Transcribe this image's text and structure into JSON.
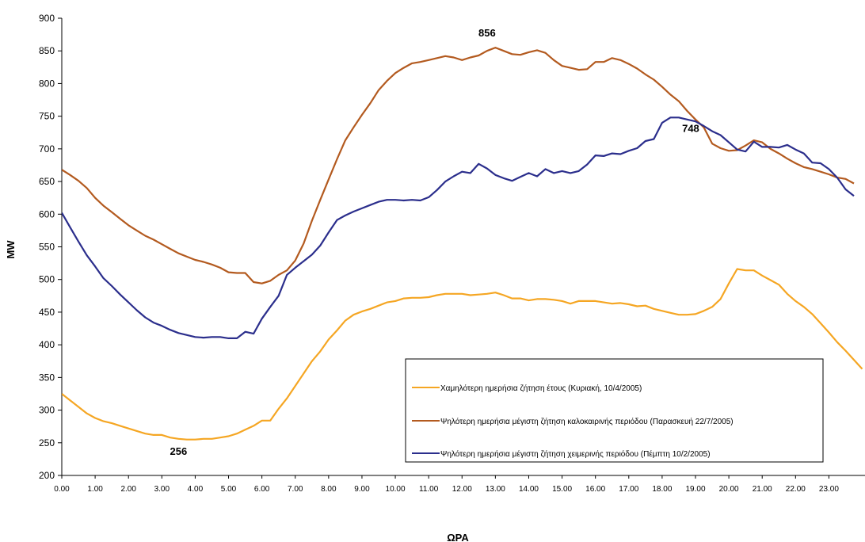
{
  "chart_data": {
    "type": "line",
    "xlabel": "ΩΡΑ",
    "ylabel": "MW",
    "ylim": [
      200,
      900
    ],
    "xlim": [
      0,
      23.75
    ],
    "y_ticks": [
      200,
      250,
      300,
      350,
      400,
      450,
      500,
      550,
      600,
      650,
      700,
      750,
      800,
      850,
      900
    ],
    "x_tick_labels": [
      "0.00",
      "1.00",
      "2.00",
      "3.00",
      "4.00",
      "5.00",
      "6.00",
      "7.00",
      "8.00",
      "9.00",
      "10.00",
      "11.00",
      "12.00",
      "13.00",
      "14.00",
      "15.00",
      "16.00",
      "17.00",
      "18.00",
      "19.00",
      "20.00",
      "21.00",
      "22.00",
      "23.00"
    ],
    "grid": false,
    "legend_position": "bottom-right",
    "series": [
      {
        "name": "Χαμηλότερη ημερήσια ζήτηση έτους (Κυριακή, 10/4/2005)",
        "color": "#f5a623",
        "points": [
          [
            0,
            325
          ],
          [
            0.25,
            315
          ],
          [
            0.5,
            305
          ],
          [
            0.75,
            295
          ],
          [
            1,
            288
          ],
          [
            1.25,
            283
          ],
          [
            1.5,
            280
          ],
          [
            1.75,
            276
          ],
          [
            2,
            272
          ],
          [
            2.25,
            268
          ],
          [
            2.5,
            264
          ],
          [
            2.75,
            262
          ],
          [
            3,
            262
          ],
          [
            3.25,
            258
          ],
          [
            3.5,
            256
          ],
          [
            3.75,
            255
          ],
          [
            4,
            255
          ],
          [
            4.25,
            256
          ],
          [
            4.5,
            256
          ],
          [
            4.75,
            258
          ],
          [
            5,
            260
          ],
          [
            5.25,
            264
          ],
          [
            5.5,
            270
          ],
          [
            5.75,
            276
          ],
          [
            6,
            284
          ],
          [
            6.25,
            284
          ],
          [
            6.5,
            302
          ],
          [
            6.75,
            318
          ],
          [
            7,
            337
          ],
          [
            7.25,
            356
          ],
          [
            7.5,
            375
          ],
          [
            7.75,
            390
          ],
          [
            8,
            408
          ],
          [
            8.25,
            422
          ],
          [
            8.5,
            437
          ],
          [
            8.75,
            446
          ],
          [
            9,
            451
          ],
          [
            9.25,
            455
          ],
          [
            9.5,
            460
          ],
          [
            9.75,
            465
          ],
          [
            10,
            467
          ],
          [
            10.25,
            471
          ],
          [
            10.5,
            472
          ],
          [
            10.75,
            472
          ],
          [
            11,
            473
          ],
          [
            11.25,
            476
          ],
          [
            11.5,
            478
          ],
          [
            11.75,
            478
          ],
          [
            12,
            478
          ],
          [
            12.25,
            476
          ],
          [
            12.5,
            477
          ],
          [
            12.75,
            478
          ],
          [
            13,
            480
          ],
          [
            13.25,
            476
          ],
          [
            13.5,
            471
          ],
          [
            13.75,
            471
          ],
          [
            14,
            468
          ],
          [
            14.25,
            470
          ],
          [
            14.5,
            470
          ],
          [
            14.75,
            469
          ],
          [
            15,
            467
          ],
          [
            15.25,
            463
          ],
          [
            15.5,
            467
          ],
          [
            15.75,
            467
          ],
          [
            16,
            467
          ],
          [
            16.25,
            465
          ],
          [
            16.5,
            463
          ],
          [
            16.75,
            464
          ],
          [
            17,
            462
          ],
          [
            17.25,
            459
          ],
          [
            17.5,
            460
          ],
          [
            17.75,
            455
          ],
          [
            18,
            452
          ],
          [
            18.25,
            449
          ],
          [
            18.5,
            446
          ],
          [
            18.75,
            446
          ],
          [
            19,
            447
          ],
          [
            19.25,
            452
          ],
          [
            19.5,
            458
          ],
          [
            19.75,
            470
          ],
          [
            20,
            494
          ],
          [
            20.25,
            516
          ],
          [
            20.5,
            514
          ],
          [
            20.75,
            514
          ],
          [
            21,
            506
          ],
          [
            21.25,
            499
          ],
          [
            21.5,
            492
          ],
          [
            21.75,
            478
          ],
          [
            22,
            467
          ],
          [
            22.25,
            458
          ],
          [
            22.5,
            447
          ],
          [
            22.75,
            433
          ],
          [
            23,
            419
          ],
          [
            23.25,
            404
          ],
          [
            23.5,
            391
          ],
          [
            23.75,
            377
          ],
          [
            24,
            363
          ]
        ]
      },
      {
        "name": "Ψηλότερη ημερήσια μέγιστη ζήτηση καλοκαιρινής περιόδου (Παρασκευή 22/7/2005)",
        "color": "#b35a1f",
        "points": [
          [
            0,
            668
          ],
          [
            0.25,
            660
          ],
          [
            0.5,
            651
          ],
          [
            0.75,
            640
          ],
          [
            1,
            625
          ],
          [
            1.25,
            613
          ],
          [
            1.5,
            603
          ],
          [
            1.75,
            593
          ],
          [
            2,
            583
          ],
          [
            2.25,
            575
          ],
          [
            2.5,
            567
          ],
          [
            2.75,
            561
          ],
          [
            3,
            554
          ],
          [
            3.25,
            547
          ],
          [
            3.5,
            540
          ],
          [
            3.75,
            535
          ],
          [
            4,
            530
          ],
          [
            4.25,
            527
          ],
          [
            4.5,
            523
          ],
          [
            4.75,
            518
          ],
          [
            5,
            511
          ],
          [
            5.25,
            510
          ],
          [
            5.5,
            510
          ],
          [
            5.75,
            496
          ],
          [
            6,
            494
          ],
          [
            6.25,
            498
          ],
          [
            6.5,
            507
          ],
          [
            6.75,
            514
          ],
          [
            7,
            529
          ],
          [
            7.25,
            555
          ],
          [
            7.5,
            590
          ],
          [
            7.75,
            622
          ],
          [
            8,
            653
          ],
          [
            8.25,
            684
          ],
          [
            8.5,
            713
          ],
          [
            8.75,
            733
          ],
          [
            9,
            752
          ],
          [
            9.25,
            770
          ],
          [
            9.5,
            790
          ],
          [
            9.75,
            804
          ],
          [
            10,
            816
          ],
          [
            10.25,
            824
          ],
          [
            10.5,
            831
          ],
          [
            10.75,
            833
          ],
          [
            11,
            836
          ],
          [
            11.25,
            839
          ],
          [
            11.5,
            842
          ],
          [
            11.75,
            840
          ],
          [
            12,
            836
          ],
          [
            12.25,
            840
          ],
          [
            12.5,
            843
          ],
          [
            12.75,
            850
          ],
          [
            13,
            855
          ],
          [
            13.25,
            850
          ],
          [
            13.5,
            845
          ],
          [
            13.75,
            844
          ],
          [
            14,
            848
          ],
          [
            14.25,
            851
          ],
          [
            14.5,
            847
          ],
          [
            14.75,
            836
          ],
          [
            15,
            827
          ],
          [
            15.25,
            824
          ],
          [
            15.5,
            821
          ],
          [
            15.75,
            822
          ],
          [
            16,
            833
          ],
          [
            16.25,
            833
          ],
          [
            16.5,
            839
          ],
          [
            16.75,
            836
          ],
          [
            17,
            830
          ],
          [
            17.25,
            823
          ],
          [
            17.5,
            814
          ],
          [
            17.75,
            806
          ],
          [
            18,
            795
          ],
          [
            18.25,
            783
          ],
          [
            18.5,
            773
          ],
          [
            18.75,
            758
          ],
          [
            19,
            745
          ],
          [
            19.25,
            733
          ],
          [
            19.5,
            708
          ],
          [
            19.75,
            701
          ],
          [
            20,
            697
          ],
          [
            20.25,
            698
          ],
          [
            20.5,
            705
          ],
          [
            20.75,
            713
          ],
          [
            21,
            710
          ],
          [
            21.25,
            700
          ],
          [
            21.5,
            693
          ],
          [
            21.75,
            685
          ],
          [
            22,
            678
          ],
          [
            22.25,
            672
          ],
          [
            22.5,
            669
          ],
          [
            22.75,
            665
          ],
          [
            23,
            661
          ],
          [
            23.25,
            656
          ],
          [
            23.5,
            654
          ],
          [
            23.75,
            647
          ]
        ]
      },
      {
        "name": "Ψηλότερη ημερήσια μέγιστη ζήτηση χειμερινής περιόδου (Πέμπτη 10/2/2005)",
        "color": "#2b2e8c",
        "points": [
          [
            0,
            602
          ],
          [
            0.25,
            580
          ],
          [
            0.5,
            558
          ],
          [
            0.75,
            537
          ],
          [
            1,
            520
          ],
          [
            1.25,
            502
          ],
          [
            1.5,
            490
          ],
          [
            1.75,
            477
          ],
          [
            2,
            465
          ],
          [
            2.25,
            453
          ],
          [
            2.5,
            442
          ],
          [
            2.75,
            434
          ],
          [
            3,
            429
          ],
          [
            3.25,
            423
          ],
          [
            3.5,
            418
          ],
          [
            3.75,
            415
          ],
          [
            4,
            412
          ],
          [
            4.25,
            411
          ],
          [
            4.5,
            412
          ],
          [
            4.75,
            412
          ],
          [
            5,
            410
          ],
          [
            5.25,
            410
          ],
          [
            5.5,
            420
          ],
          [
            5.75,
            417
          ],
          [
            6,
            440
          ],
          [
            6.25,
            458
          ],
          [
            6.5,
            475
          ],
          [
            6.75,
            507
          ],
          [
            7,
            518
          ],
          [
            7.25,
            528
          ],
          [
            7.5,
            538
          ],
          [
            7.75,
            552
          ],
          [
            8,
            572
          ],
          [
            8.25,
            591
          ],
          [
            8.5,
            598
          ],
          [
            8.75,
            604
          ],
          [
            9,
            609
          ],
          [
            9.25,
            614
          ],
          [
            9.5,
            619
          ],
          [
            9.75,
            622
          ],
          [
            10,
            622
          ],
          [
            10.25,
            621
          ],
          [
            10.5,
            622
          ],
          [
            10.75,
            621
          ],
          [
            11,
            626
          ],
          [
            11.25,
            637
          ],
          [
            11.5,
            650
          ],
          [
            11.75,
            658
          ],
          [
            12,
            665
          ],
          [
            12.25,
            663
          ],
          [
            12.5,
            677
          ],
          [
            12.75,
            670
          ],
          [
            13,
            660
          ],
          [
            13.25,
            655
          ],
          [
            13.5,
            651
          ],
          [
            13.75,
            657
          ],
          [
            14,
            663
          ],
          [
            14.25,
            658
          ],
          [
            14.5,
            669
          ],
          [
            14.75,
            663
          ],
          [
            15,
            666
          ],
          [
            15.25,
            663
          ],
          [
            15.5,
            666
          ],
          [
            15.75,
            676
          ],
          [
            16,
            690
          ],
          [
            16.25,
            689
          ],
          [
            16.5,
            693
          ],
          [
            16.75,
            692
          ],
          [
            17,
            697
          ],
          [
            17.25,
            701
          ],
          [
            17.5,
            712
          ],
          [
            17.75,
            715
          ],
          [
            18,
            740
          ],
          [
            18.25,
            748
          ],
          [
            18.5,
            748
          ],
          [
            18.75,
            745
          ],
          [
            19,
            742
          ],
          [
            19.25,
            735
          ],
          [
            19.5,
            727
          ],
          [
            19.75,
            721
          ],
          [
            20,
            710
          ],
          [
            20.25,
            699
          ],
          [
            20.5,
            696
          ],
          [
            20.75,
            711
          ],
          [
            21,
            703
          ],
          [
            21.25,
            703
          ],
          [
            21.5,
            702
          ],
          [
            21.75,
            706
          ],
          [
            22,
            699
          ],
          [
            22.25,
            693
          ],
          [
            22.5,
            679
          ],
          [
            22.75,
            678
          ],
          [
            23,
            669
          ],
          [
            23.25,
            656
          ],
          [
            23.5,
            638
          ],
          [
            23.75,
            628
          ]
        ]
      }
    ],
    "annotations": [
      {
        "text": "856",
        "x": 12.75,
        "y": 855
      },
      {
        "text": "748",
        "x": 18.5,
        "y": 748
      },
      {
        "text": "256",
        "x": 3.5,
        "y": 256
      }
    ]
  }
}
